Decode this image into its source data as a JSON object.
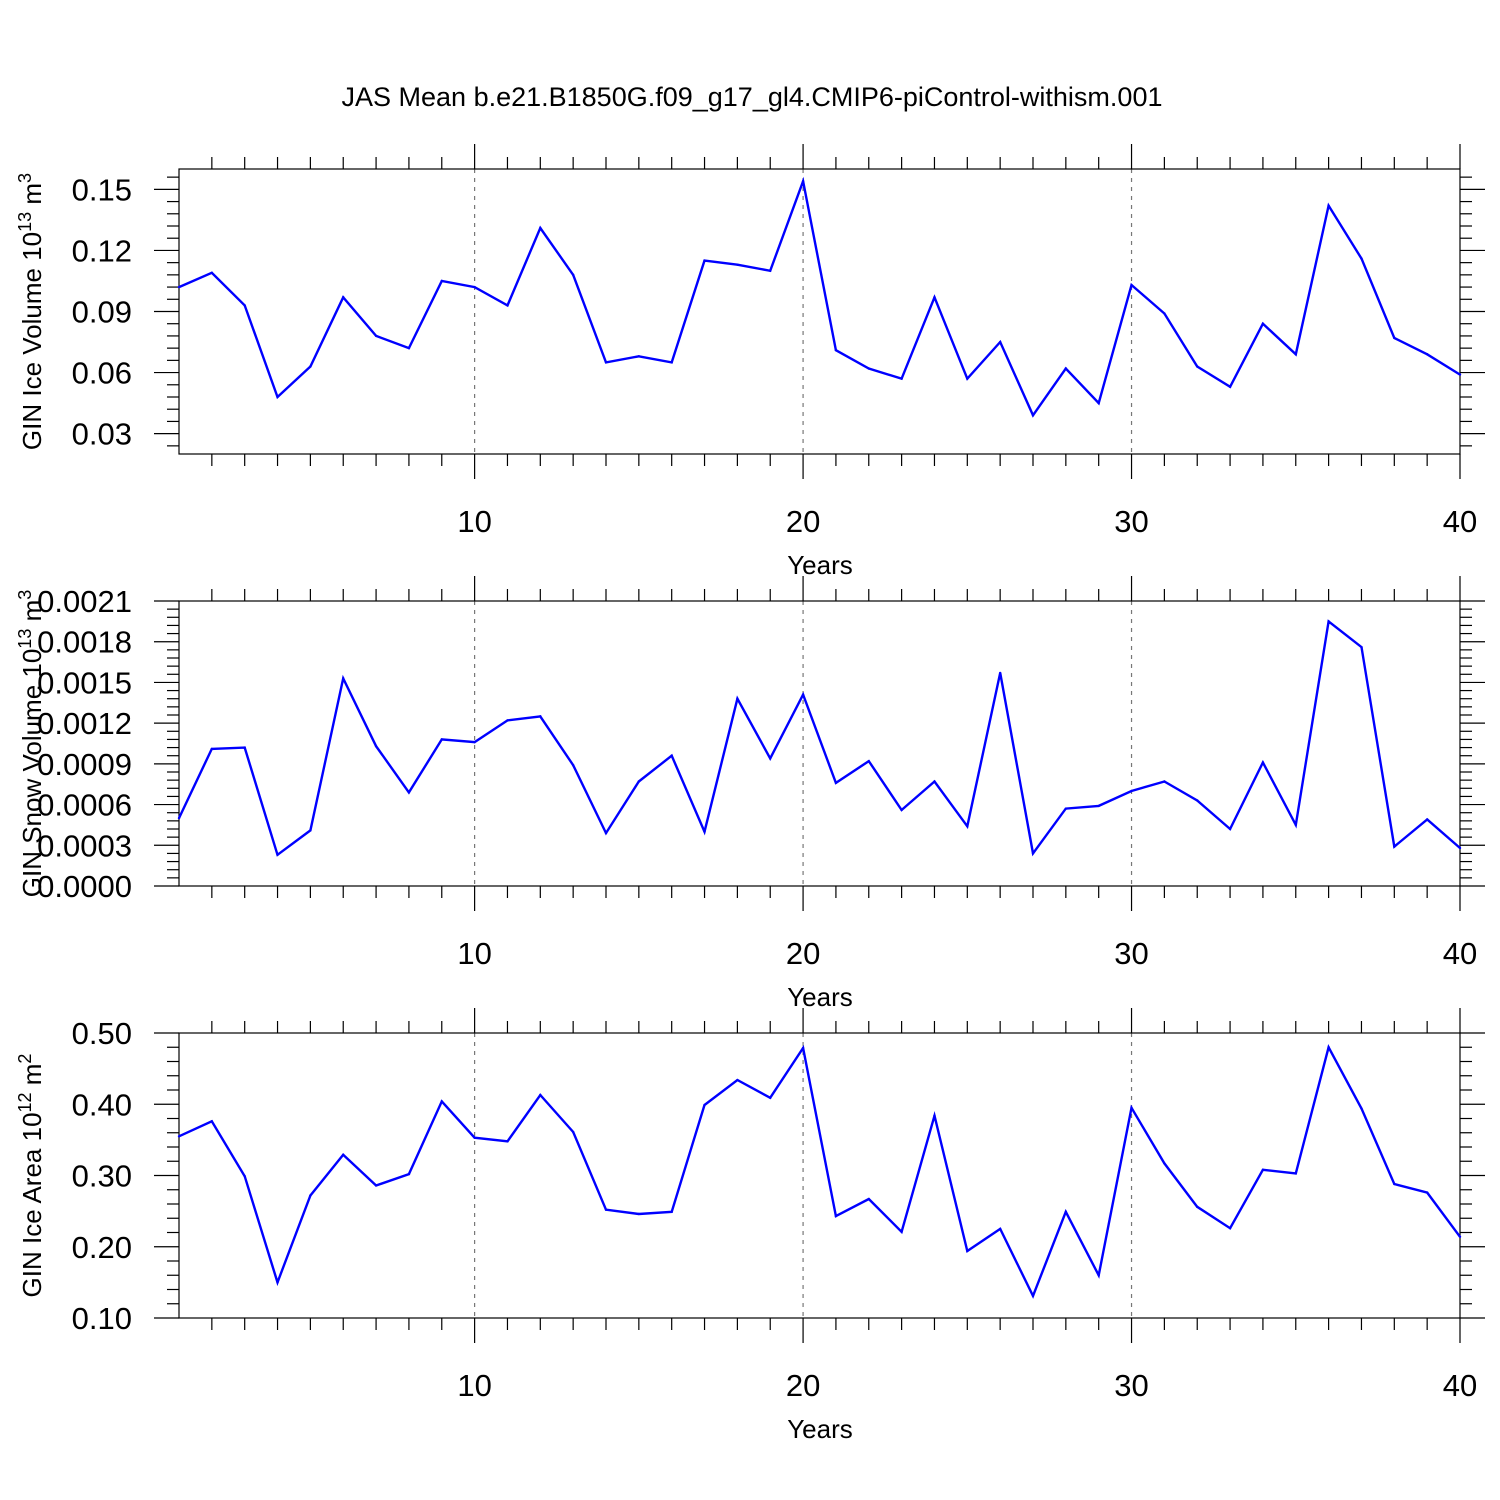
{
  "title": "JAS Mean b.e21.B1850G.f09_g17_gl4.CMIP6-piControl-withism.001",
  "colors": {
    "line": "#0000ff",
    "reference_line": "#777777",
    "frame": "#000000"
  },
  "chart_data": [
    {
      "type": "line",
      "ylabel": "GIN Ice Volume 10",
      "ylabel_exponent": "13",
      "ylabel_unit": " m",
      "ylabel_unit_exponent": "3",
      "xlabel": "Years",
      "xlim": [
        1,
        40
      ],
      "ylim": [
        0.02,
        0.16
      ],
      "xticks": [
        10,
        20,
        30,
        40
      ],
      "xtick_labels": [
        "10",
        "20",
        "30",
        "40"
      ],
      "yticks": [
        0.03,
        0.06,
        0.09,
        0.12,
        0.15
      ],
      "ytick_labels": [
        "0.03",
        "0.06",
        "0.09",
        "0.12",
        "0.15"
      ],
      "reference_lines_x": [
        10,
        20,
        30
      ],
      "grid": false,
      "x": [
        1,
        2,
        3,
        4,
        5,
        6,
        7,
        8,
        9,
        10,
        11,
        12,
        13,
        14,
        15,
        16,
        17,
        18,
        19,
        20,
        21,
        22,
        23,
        24,
        25,
        26,
        27,
        28,
        29,
        30,
        31,
        32,
        33,
        34,
        35,
        36,
        37,
        38,
        39,
        40
      ],
      "values": [
        0.102,
        0.109,
        0.093,
        0.048,
        0.063,
        0.097,
        0.078,
        0.072,
        0.105,
        0.102,
        0.093,
        0.131,
        0.108,
        0.065,
        0.068,
        0.065,
        0.115,
        0.113,
        0.11,
        0.154,
        0.071,
        0.062,
        0.057,
        0.097,
        0.057,
        0.075,
        0.039,
        0.062,
        0.045,
        0.103,
        0.089,
        0.063,
        0.053,
        0.084,
        0.069,
        0.142,
        0.116,
        0.077,
        0.069,
        0.059
      ]
    },
    {
      "type": "line",
      "ylabel": "GIN Snow Volume 10",
      "ylabel_exponent": "13",
      "ylabel_unit": " m",
      "ylabel_unit_exponent": "3",
      "xlabel": "Years",
      "xlim": [
        1,
        40
      ],
      "ylim": [
        0.0,
        0.0021
      ],
      "xticks": [
        10,
        20,
        30,
        40
      ],
      "xtick_labels": [
        "10",
        "20",
        "30",
        "40"
      ],
      "yticks": [
        0.0,
        0.0003,
        0.0006,
        0.0009,
        0.0012,
        0.0015,
        0.0018,
        0.0021
      ],
      "ytick_labels": [
        "0.0000",
        "0.0003",
        "0.0006",
        "0.0009",
        "0.0012",
        "0.0015",
        "0.0018",
        "0.0021"
      ],
      "reference_lines_x": [
        10,
        20,
        30
      ],
      "grid": false,
      "x": [
        1,
        2,
        3,
        4,
        5,
        6,
        7,
        8,
        9,
        10,
        11,
        12,
        13,
        14,
        15,
        16,
        17,
        18,
        19,
        20,
        21,
        22,
        23,
        24,
        25,
        26,
        27,
        28,
        29,
        30,
        31,
        32,
        33,
        34,
        35,
        36,
        37,
        38,
        39,
        40
      ],
      "values": [
        0.0005,
        0.00101,
        0.00102,
        0.00023,
        0.00041,
        0.00153,
        0.00103,
        0.00069,
        0.00108,
        0.00106,
        0.00122,
        0.00125,
        0.00089,
        0.00039,
        0.00077,
        0.00096,
        0.0004,
        0.00138,
        0.00094,
        0.00141,
        0.00076,
        0.00092,
        0.00056,
        0.00077,
        0.00044,
        0.00157,
        0.00024,
        0.00057,
        0.00059,
        0.0007,
        0.00077,
        0.00063,
        0.00042,
        0.00091,
        0.00045,
        0.00195,
        0.00176,
        0.00029,
        0.00049,
        0.00028
      ]
    },
    {
      "type": "line",
      "ylabel": "GIN Ice Area 10",
      "ylabel_exponent": "12",
      "ylabel_unit": " m",
      "ylabel_unit_exponent": "2",
      "xlabel": "Years",
      "xlim": [
        1,
        40
      ],
      "ylim": [
        0.1,
        0.5
      ],
      "xticks": [
        10,
        20,
        30,
        40
      ],
      "xtick_labels": [
        "10",
        "20",
        "30",
        "40"
      ],
      "yticks": [
        0.1,
        0.2,
        0.3,
        0.4,
        0.5
      ],
      "ytick_labels": [
        "0.10",
        "0.20",
        "0.30",
        "0.40",
        "0.50"
      ],
      "reference_lines_x": [
        10,
        20,
        30
      ],
      "grid": false,
      "x": [
        1,
        2,
        3,
        4,
        5,
        6,
        7,
        8,
        9,
        10,
        11,
        12,
        13,
        14,
        15,
        16,
        17,
        18,
        19,
        20,
        21,
        22,
        23,
        24,
        25,
        26,
        27,
        28,
        29,
        30,
        31,
        32,
        33,
        34,
        35,
        36,
        37,
        38,
        39,
        40
      ],
      "values": [
        0.355,
        0.376,
        0.299,
        0.15,
        0.272,
        0.329,
        0.286,
        0.302,
        0.404,
        0.353,
        0.348,
        0.413,
        0.361,
        0.252,
        0.246,
        0.249,
        0.399,
        0.434,
        0.409,
        0.479,
        0.243,
        0.267,
        0.221,
        0.384,
        0.194,
        0.225,
        0.131,
        0.249,
        0.16,
        0.395,
        0.317,
        0.256,
        0.226,
        0.308,
        0.303,
        0.48,
        0.394,
        0.288,
        0.276,
        0.214
      ]
    }
  ]
}
